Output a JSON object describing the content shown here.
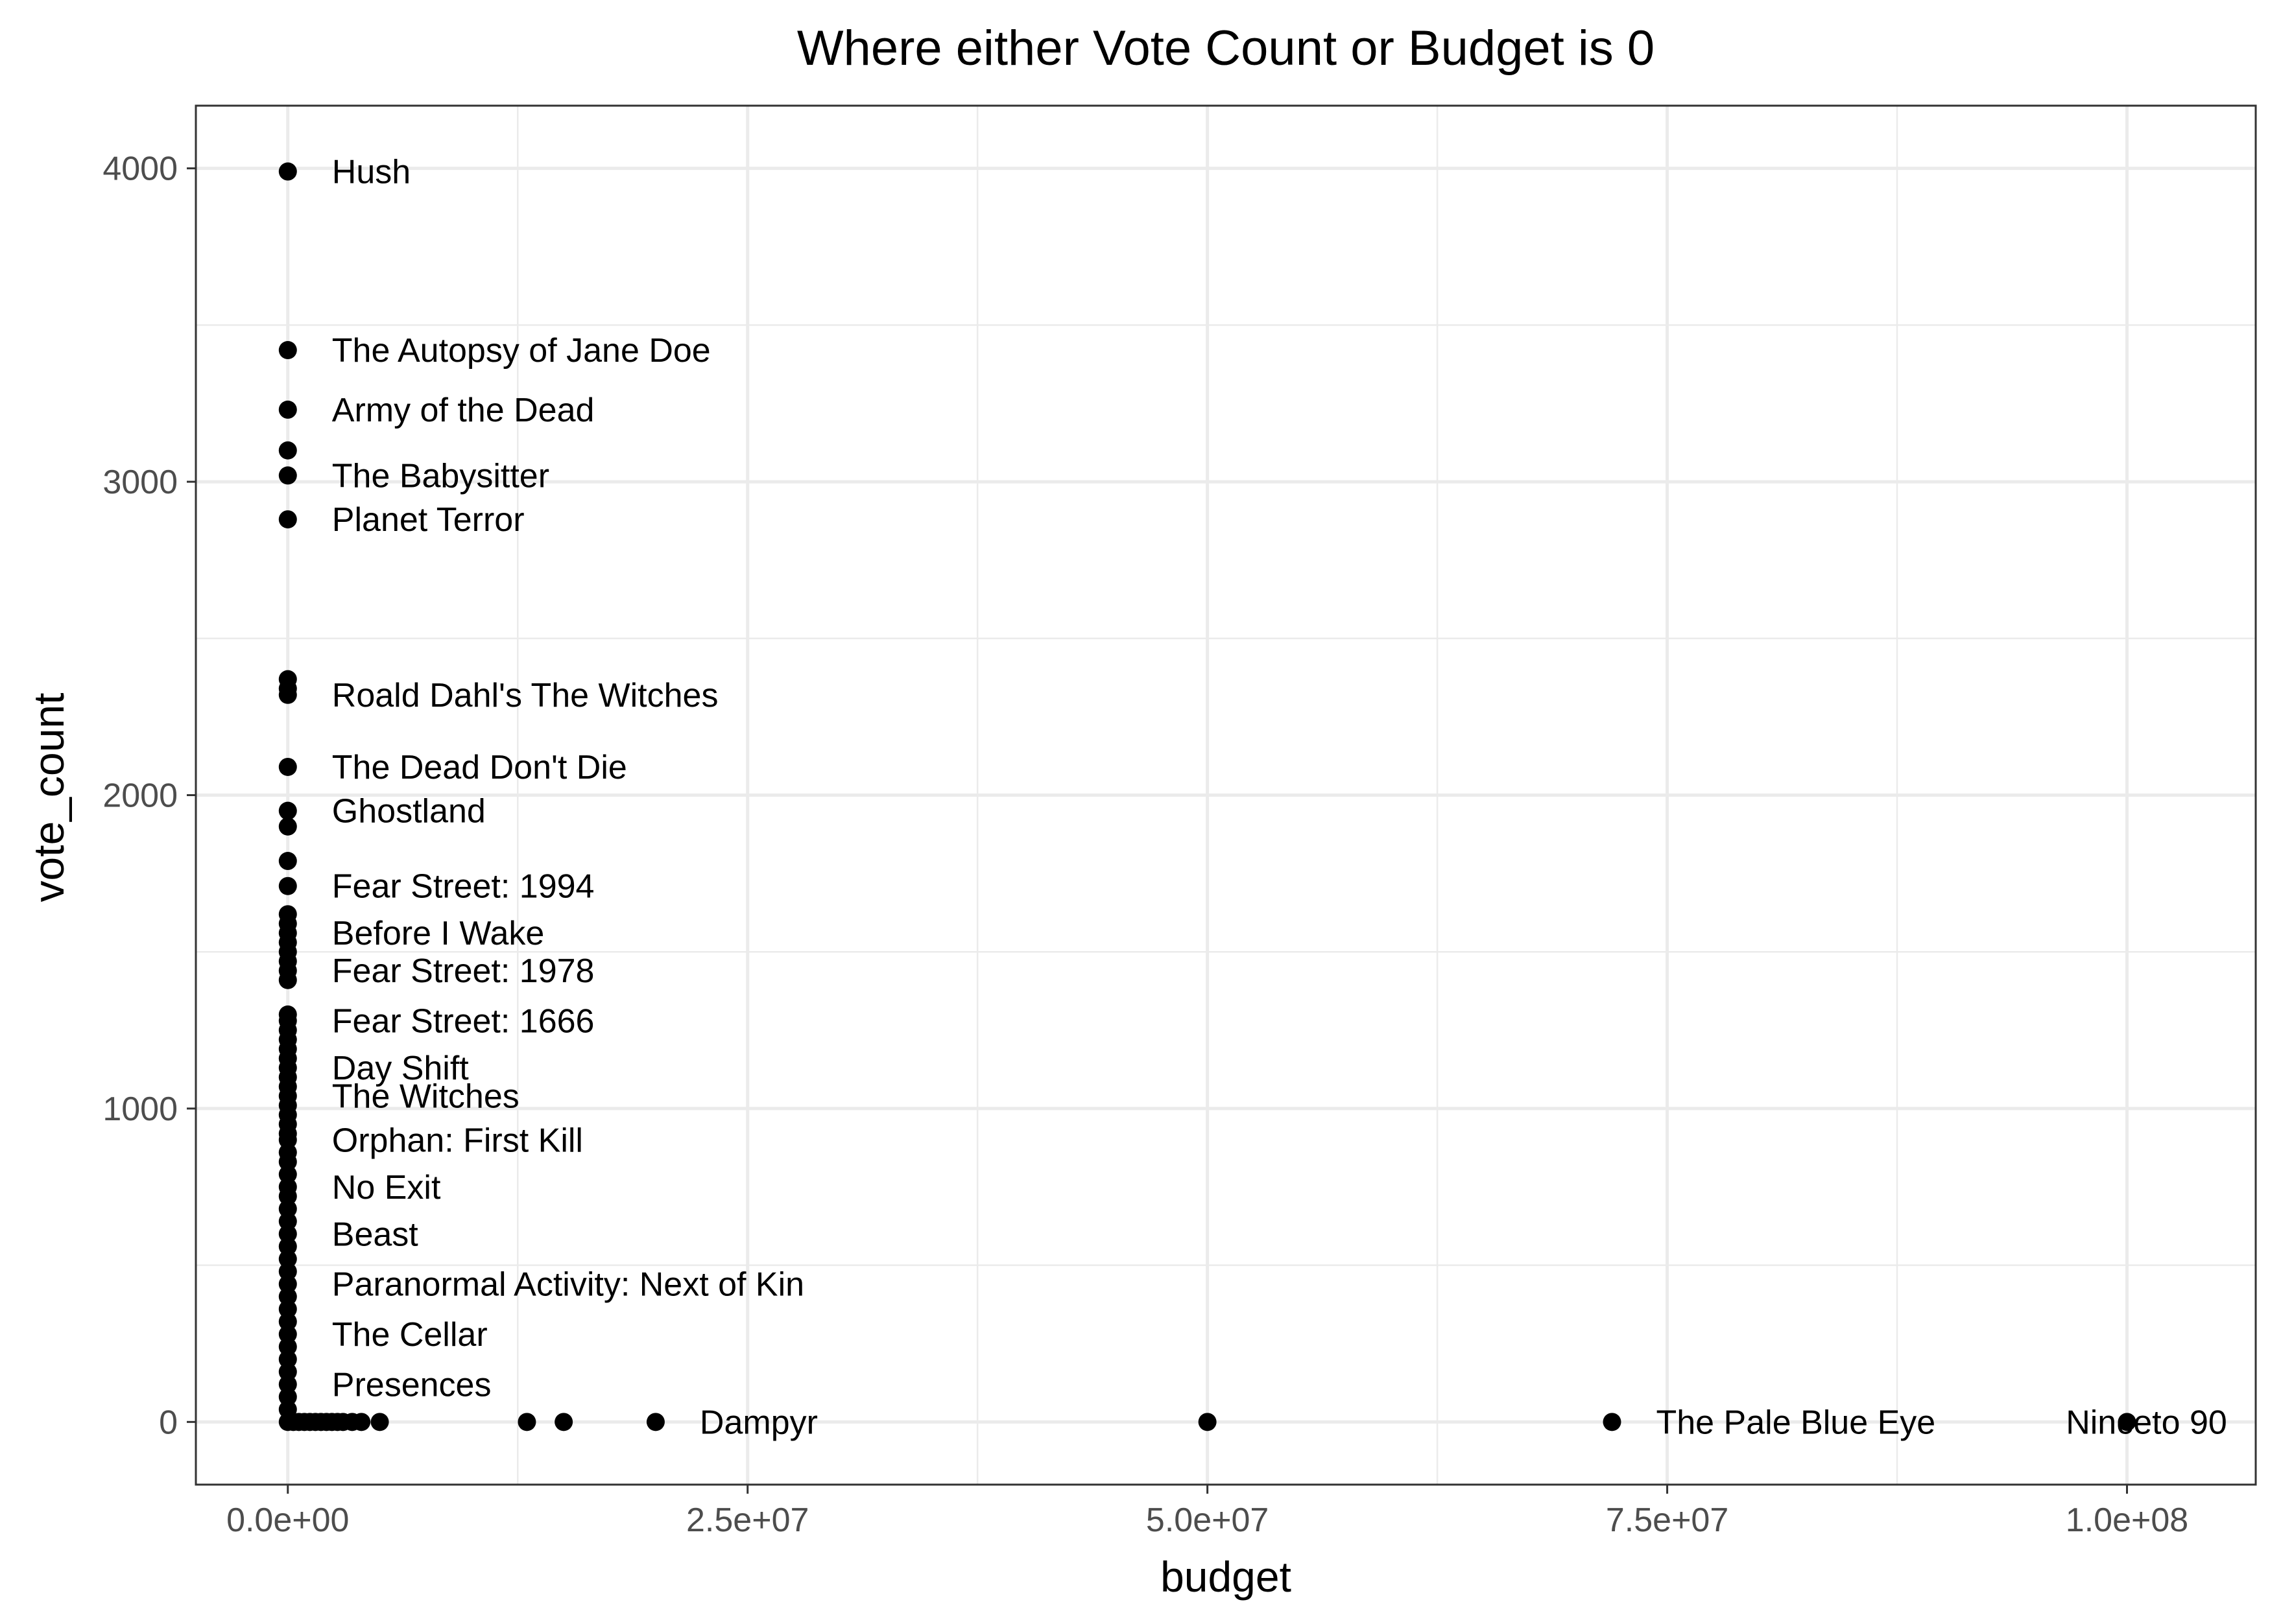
{
  "chart_data": {
    "type": "scatter",
    "title": "Where either Vote Count or Budget is 0",
    "xlabel": "budget",
    "ylabel": "vote_count",
    "xlim": [
      -5000000,
      107000000
    ],
    "ylim": [
      -200,
      4200
    ],
    "x_ticks": [
      {
        "value": 0,
        "label": "0.0e+00"
      },
      {
        "value": 25000000,
        "label": "2.5e+07"
      },
      {
        "value": 50000000,
        "label": "5.0e+07"
      },
      {
        "value": 75000000,
        "label": "7.5e+07"
      },
      {
        "value": 100000000,
        "label": "1.0e+08"
      }
    ],
    "y_ticks": [
      {
        "value": 0,
        "label": "0"
      },
      {
        "value": 1000,
        "label": "1000"
      },
      {
        "value": 2000,
        "label": "2000"
      },
      {
        "value": 3000,
        "label": "3000"
      },
      {
        "value": 4000,
        "label": "4000"
      }
    ],
    "grid": true,
    "legend": "none",
    "point_color": "#000000",
    "points": [
      {
        "x": 0,
        "y": 3990,
        "label": "Hush"
      },
      {
        "x": 0,
        "y": 3420,
        "label": "The Autopsy of Jane Doe"
      },
      {
        "x": 0,
        "y": 3230,
        "label": "Army of the Dead"
      },
      {
        "x": 0,
        "y": 3100
      },
      {
        "x": 0,
        "y": 3020,
        "label": "The Babysitter"
      },
      {
        "x": 0,
        "y": 2880,
        "label": "Planet Terror"
      },
      {
        "x": 0,
        "y": 2370
      },
      {
        "x": 0,
        "y": 2340
      },
      {
        "x": 0,
        "y": 2320,
        "label": "Roald Dahl's The Witches"
      },
      {
        "x": 0,
        "y": 2090,
        "label": "The Dead Don't Die"
      },
      {
        "x": 0,
        "y": 1950,
        "label": "Ghostland"
      },
      {
        "x": 0,
        "y": 1900
      },
      {
        "x": 0,
        "y": 1790
      },
      {
        "x": 0,
        "y": 1710,
        "label": "Fear Street: 1994"
      },
      {
        "x": 0,
        "y": 1620
      },
      {
        "x": 0,
        "y": 1590
      },
      {
        "x": 0,
        "y": 1560,
        "label": "Before I Wake"
      },
      {
        "x": 0,
        "y": 1530
      },
      {
        "x": 0,
        "y": 1500
      },
      {
        "x": 0,
        "y": 1470
      },
      {
        "x": 0,
        "y": 1440,
        "label": "Fear Street: 1978"
      },
      {
        "x": 0,
        "y": 1410
      },
      {
        "x": 0,
        "y": 1300
      },
      {
        "x": 0,
        "y": 1280,
        "label": "Fear Street: 1666"
      },
      {
        "x": 0,
        "y": 1250
      },
      {
        "x": 0,
        "y": 1220
      },
      {
        "x": 0,
        "y": 1190
      },
      {
        "x": 0,
        "y": 1160
      },
      {
        "x": 0,
        "y": 1130,
        "label": "Day Shift"
      },
      {
        "x": 0,
        "y": 1100
      },
      {
        "x": 0,
        "y": 1070
      },
      {
        "x": 0,
        "y": 1040,
        "label": "The Witches"
      },
      {
        "x": 0,
        "y": 1010
      },
      {
        "x": 0,
        "y": 980
      },
      {
        "x": 0,
        "y": 950
      },
      {
        "x": 0,
        "y": 920
      },
      {
        "x": 0,
        "y": 900,
        "label": "Orphan: First Kill"
      },
      {
        "x": 0,
        "y": 860
      },
      {
        "x": 0,
        "y": 830
      },
      {
        "x": 0,
        "y": 790
      },
      {
        "x": 0,
        "y": 750,
        "label": "No Exit"
      },
      {
        "x": 0,
        "y": 720
      },
      {
        "x": 0,
        "y": 680
      },
      {
        "x": 0,
        "y": 640
      },
      {
        "x": 0,
        "y": 600,
        "label": "Beast"
      },
      {
        "x": 0,
        "y": 560
      },
      {
        "x": 0,
        "y": 520
      },
      {
        "x": 0,
        "y": 480
      },
      {
        "x": 0,
        "y": 440,
        "label": "Paranormal Activity: Next of Kin"
      },
      {
        "x": 0,
        "y": 400
      },
      {
        "x": 0,
        "y": 360
      },
      {
        "x": 0,
        "y": 320
      },
      {
        "x": 0,
        "y": 280,
        "label": "The Cellar"
      },
      {
        "x": 0,
        "y": 240
      },
      {
        "x": 0,
        "y": 200
      },
      {
        "x": 0,
        "y": 160
      },
      {
        "x": 0,
        "y": 120,
        "label": "Presences"
      },
      {
        "x": 0,
        "y": 80
      },
      {
        "x": 0,
        "y": 40
      },
      {
        "x": 0,
        "y": 0
      },
      {
        "x": 300000,
        "y": 0
      },
      {
        "x": 600000,
        "y": 0
      },
      {
        "x": 900000,
        "y": 0
      },
      {
        "x": 1200000,
        "y": 0
      },
      {
        "x": 1500000,
        "y": 0
      },
      {
        "x": 1800000,
        "y": 0
      },
      {
        "x": 2100000,
        "y": 0
      },
      {
        "x": 2400000,
        "y": 0
      },
      {
        "x": 2700000,
        "y": 0
      },
      {
        "x": 3000000,
        "y": 0
      },
      {
        "x": 3500000,
        "y": 0
      },
      {
        "x": 4000000,
        "y": 0
      },
      {
        "x": 5000000,
        "y": 0
      },
      {
        "x": 13000000,
        "y": 0
      },
      {
        "x": 15000000,
        "y": 0
      },
      {
        "x": 20000000,
        "y": 0,
        "label": "Dampyr"
      },
      {
        "x": 50000000,
        "y": 0
      },
      {
        "x": 72000000,
        "y": 0,
        "label": "The Pale Blue Eye"
      },
      {
        "x": 100000000,
        "y": 0,
        "label": "Ninceto 90"
      }
    ]
  }
}
